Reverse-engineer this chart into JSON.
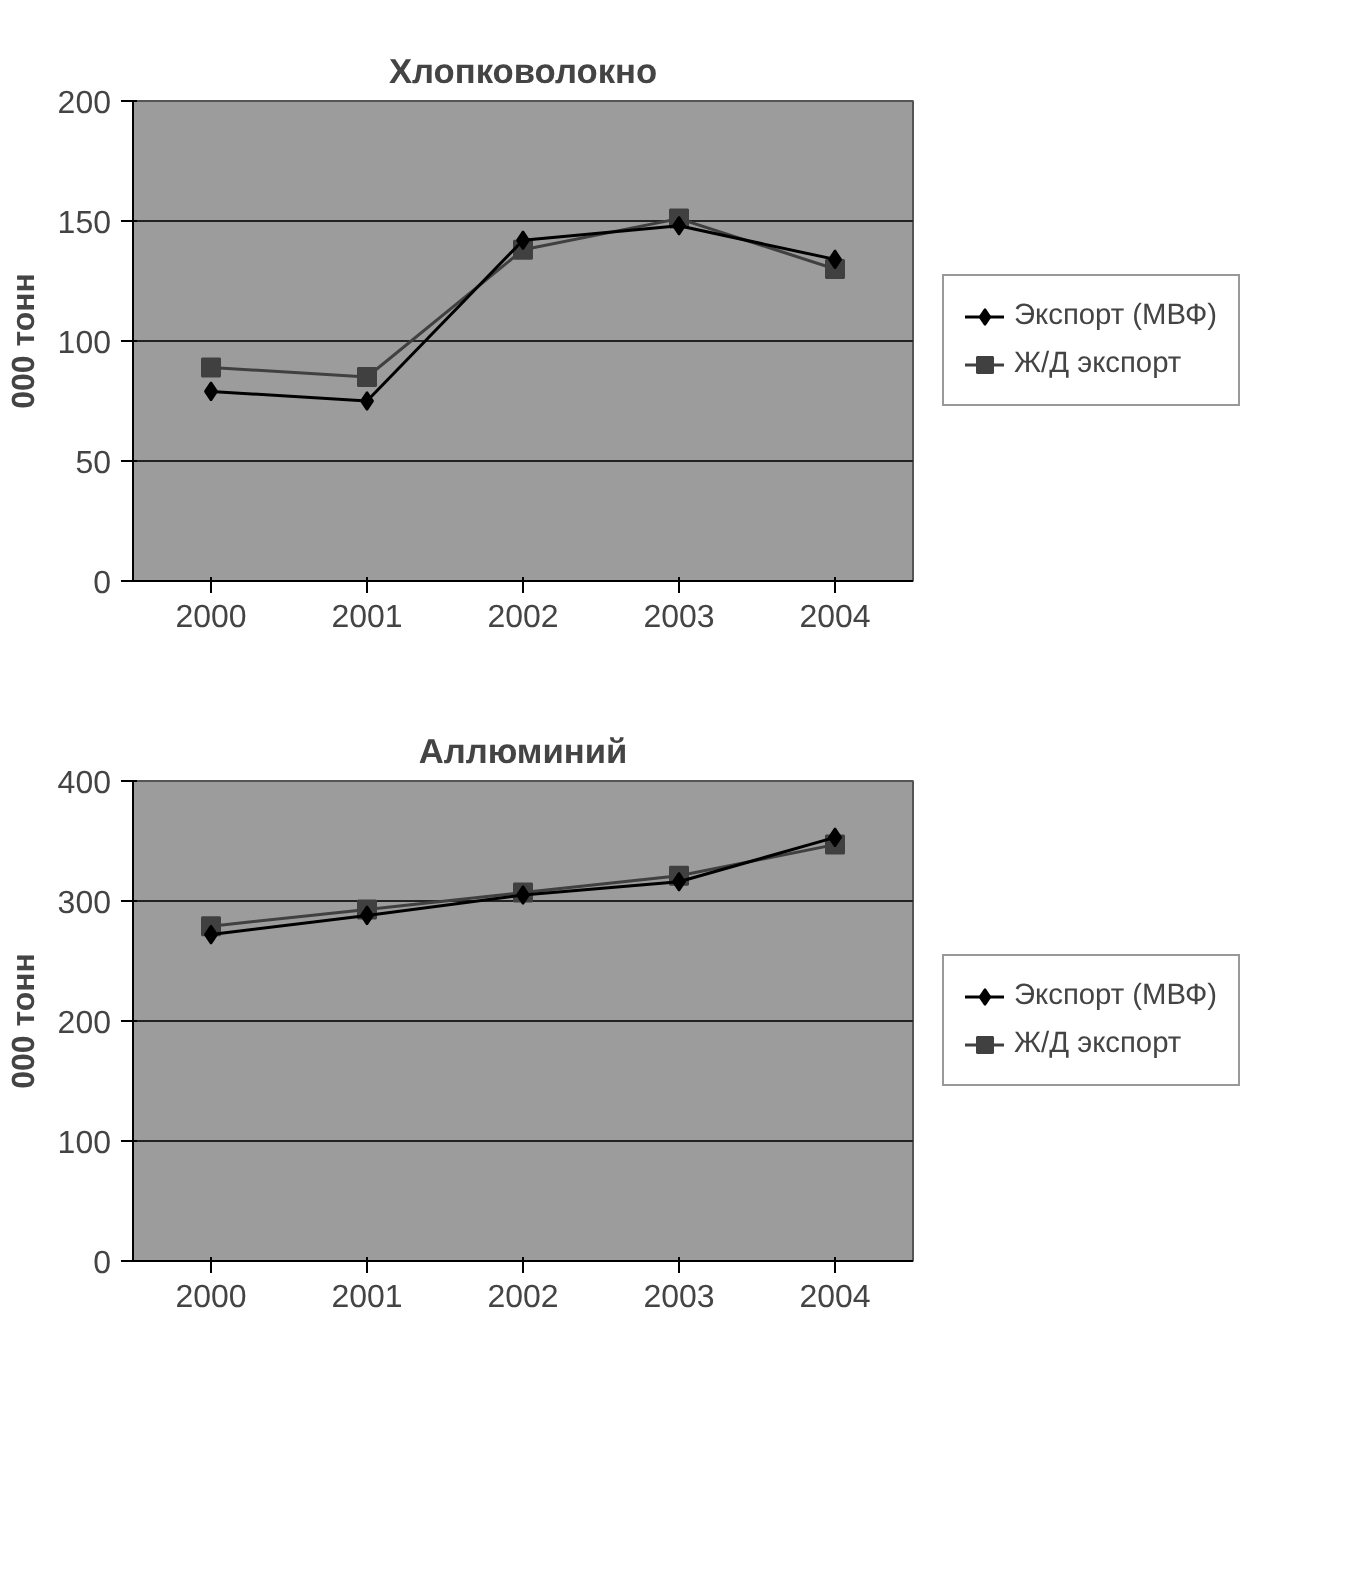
{
  "chart_data": [
    {
      "type": "line",
      "title": "Хлопковолокно",
      "ylabel": "000 тонн",
      "categories": [
        "2000",
        "2001",
        "2002",
        "2003",
        "2004"
      ],
      "ylim": [
        0,
        200
      ],
      "yticks": [
        0,
        50,
        100,
        150,
        200
      ],
      "grid": "y",
      "legend": "right",
      "series": [
        {
          "name": "Экспорт (МВФ)",
          "color": "#000000",
          "marker": "diamond",
          "values": [
            79,
            75,
            142,
            148,
            134
          ]
        },
        {
          "name": "Ж/Д экспорт",
          "color": "#404040",
          "marker": "square",
          "values": [
            89,
            85,
            138,
            151,
            130
          ]
        }
      ]
    },
    {
      "type": "line",
      "title": "Аллюминий",
      "ylabel": "000 тонн",
      "categories": [
        "2000",
        "2001",
        "2002",
        "2003",
        "2004"
      ],
      "ylim": [
        0,
        400
      ],
      "yticks": [
        0,
        100,
        200,
        300,
        400
      ],
      "grid": "y",
      "legend": "right",
      "series": [
        {
          "name": "Экспорт (МВФ)",
          "color": "#000000",
          "marker": "diamond",
          "values": [
            272,
            288,
            305,
            316,
            353
          ]
        },
        {
          "name": "Ж/Д экспорт",
          "color": "#404040",
          "marker": "square",
          "values": [
            279,
            293,
            307,
            321,
            347
          ]
        }
      ]
    }
  ]
}
